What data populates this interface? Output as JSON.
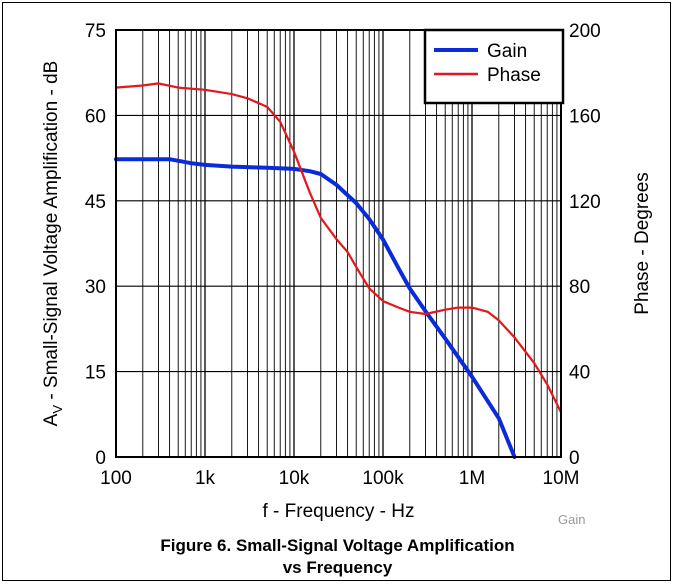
{
  "chart_data": {
    "type": "line",
    "title": "Figure 6. Small-Signal Voltage Amplification",
    "subtitle": "vs Frequency",
    "xlabel": "f - Frequency - Hz",
    "ylabel_main": "A",
    "ylabel_sub": "V",
    "ylabel_rest": " - Small-Signal Voltage Amplification - dB",
    "y2label": "Phase - Degrees",
    "xscale": "log",
    "xlim": [
      100,
      10000000
    ],
    "ylim": [
      0,
      75
    ],
    "y2lim": [
      0,
      200
    ],
    "x_ticks": [
      100,
      1000,
      10000,
      100000,
      1000000,
      10000000
    ],
    "x_tick_labels": [
      "100",
      "1k",
      "10k",
      "100k",
      "1M",
      "10M"
    ],
    "y_ticks": [
      0,
      15,
      30,
      45,
      60,
      75
    ],
    "y_tick_labels": [
      "0",
      "15",
      "30",
      "45",
      "60",
      "75"
    ],
    "y2_ticks": [
      0,
      40,
      80,
      120,
      160,
      200
    ],
    "y2_tick_labels": [
      "0",
      "40",
      "80",
      "120",
      "160",
      "200"
    ],
    "grid": true,
    "legend_position": "top-right",
    "series": [
      {
        "name": "Gain",
        "axis": "left",
        "color": "#0a2bd9",
        "x": [
          100,
          200,
          400,
          700,
          1000,
          2000,
          5000,
          10000,
          15000,
          20000,
          30000,
          50000,
          70000,
          100000,
          150000,
          200000,
          300000,
          500000,
          1000000,
          2000000,
          3000000
        ],
        "y": [
          52.3,
          52.3,
          52.3,
          51.6,
          51.3,
          51.0,
          50.8,
          50.6,
          50.2,
          49.7,
          47.8,
          44.6,
          41.8,
          38.2,
          33.1,
          29.6,
          25.6,
          20.8,
          14.1,
          6.8,
          0
        ]
      },
      {
        "name": "Phase",
        "axis": "right",
        "color": "#e3171d",
        "x": [
          100,
          200,
          300,
          500,
          1000,
          2000,
          3000,
          5000,
          7000,
          10000,
          15000,
          20000,
          30000,
          40000,
          50000,
          70000,
          100000,
          150000,
          200000,
          300000,
          500000,
          700000,
          1000000,
          1500000,
          2000000,
          3000000,
          5000000,
          7000000,
          10000000
        ],
        "y": [
          173,
          174,
          175,
          173,
          172,
          170,
          168,
          164,
          157,
          143,
          124,
          112,
          102,
          96,
          89,
          79,
          73,
          70,
          68,
          67,
          69,
          70,
          70,
          68,
          64,
          56,
          44,
          34,
          21
        ]
      }
    ]
  },
  "watermark": "Gain"
}
